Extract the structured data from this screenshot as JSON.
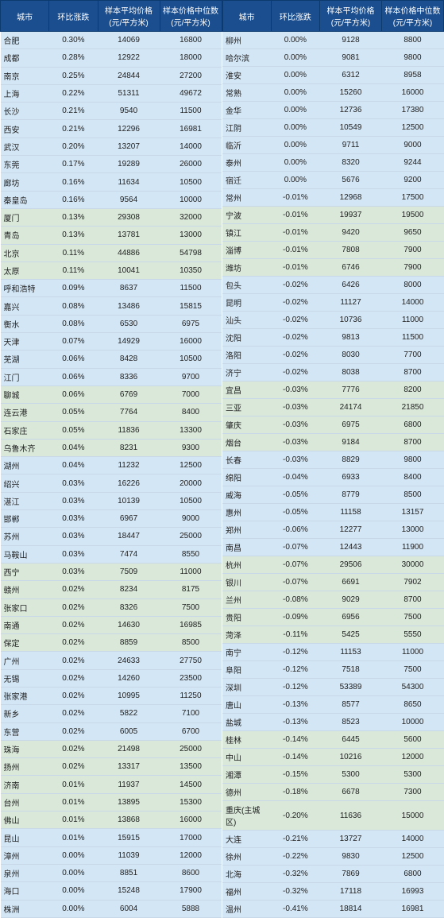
{
  "headers": {
    "city": "城市",
    "change": "环比涨跌",
    "avg": "样本平均价格(元/平方米)",
    "median": "样本价格中位数(元/平方米)"
  },
  "left": [
    {
      "c": "合肥",
      "p": "0.30%",
      "a": "14069",
      "m": "16800",
      "cls": "blue"
    },
    {
      "c": "成都",
      "p": "0.28%",
      "a": "12922",
      "m": "18000",
      "cls": "blue"
    },
    {
      "c": "南京",
      "p": "0.25%",
      "a": "24844",
      "m": "27200",
      "cls": "blue"
    },
    {
      "c": "上海",
      "p": "0.22%",
      "a": "51311",
      "m": "49672",
      "cls": "blue"
    },
    {
      "c": "长沙",
      "p": "0.21%",
      "a": "9540",
      "m": "11500",
      "cls": "blue"
    },
    {
      "c": "西安",
      "p": "0.21%",
      "a": "12296",
      "m": "16981",
      "cls": "blue"
    },
    {
      "c": "武汉",
      "p": "0.20%",
      "a": "13207",
      "m": "14000",
      "cls": "blue"
    },
    {
      "c": "东莞",
      "p": "0.17%",
      "a": "19289",
      "m": "26000",
      "cls": "blue"
    },
    {
      "c": "廊坊",
      "p": "0.16%",
      "a": "11634",
      "m": "10500",
      "cls": "blue"
    },
    {
      "c": "秦皇岛",
      "p": "0.16%",
      "a": "9564",
      "m": "10000",
      "cls": "blue"
    },
    {
      "c": "厦门",
      "p": "0.13%",
      "a": "29308",
      "m": "32000",
      "cls": "green"
    },
    {
      "c": "青岛",
      "p": "0.13%",
      "a": "13781",
      "m": "13000",
      "cls": "green"
    },
    {
      "c": "北京",
      "p": "0.11%",
      "a": "44886",
      "m": "54798",
      "cls": "green"
    },
    {
      "c": "太原",
      "p": "0.11%",
      "a": "10041",
      "m": "10350",
      "cls": "green"
    },
    {
      "c": "呼和浩特",
      "p": "0.09%",
      "a": "8637",
      "m": "11500",
      "cls": "blue"
    },
    {
      "c": "嘉兴",
      "p": "0.08%",
      "a": "13486",
      "m": "15815",
      "cls": "blue"
    },
    {
      "c": "衡水",
      "p": "0.08%",
      "a": "6530",
      "m": "6975",
      "cls": "blue"
    },
    {
      "c": "天津",
      "p": "0.07%",
      "a": "14929",
      "m": "16000",
      "cls": "blue"
    },
    {
      "c": "芜湖",
      "p": "0.06%",
      "a": "8428",
      "m": "10500",
      "cls": "blue"
    },
    {
      "c": "江门",
      "p": "0.06%",
      "a": "8336",
      "m": "9700",
      "cls": "blue"
    },
    {
      "c": "聊城",
      "p": "0.06%",
      "a": "6769",
      "m": "7000",
      "cls": "green"
    },
    {
      "c": "连云港",
      "p": "0.05%",
      "a": "7764",
      "m": "8400",
      "cls": "green"
    },
    {
      "c": "石家庄",
      "p": "0.05%",
      "a": "11836",
      "m": "13300",
      "cls": "green"
    },
    {
      "c": "乌鲁木齐",
      "p": "0.04%",
      "a": "8231",
      "m": "9300",
      "cls": "green"
    },
    {
      "c": "湖州",
      "p": "0.04%",
      "a": "11232",
      "m": "12500",
      "cls": "blue"
    },
    {
      "c": "绍兴",
      "p": "0.03%",
      "a": "16226",
      "m": "20000",
      "cls": "blue"
    },
    {
      "c": "湛江",
      "p": "0.03%",
      "a": "10139",
      "m": "10500",
      "cls": "blue"
    },
    {
      "c": "邯郸",
      "p": "0.03%",
      "a": "6967",
      "m": "9000",
      "cls": "blue"
    },
    {
      "c": "苏州",
      "p": "0.03%",
      "a": "18447",
      "m": "25000",
      "cls": "blue"
    },
    {
      "c": "马鞍山",
      "p": "0.03%",
      "a": "7474",
      "m": "8550",
      "cls": "blue"
    },
    {
      "c": "西宁",
      "p": "0.03%",
      "a": "7509",
      "m": "11000",
      "cls": "green"
    },
    {
      "c": "赣州",
      "p": "0.02%",
      "a": "8234",
      "m": "8175",
      "cls": "green"
    },
    {
      "c": "张家口",
      "p": "0.02%",
      "a": "8326",
      "m": "7500",
      "cls": "green"
    },
    {
      "c": "南通",
      "p": "0.02%",
      "a": "14630",
      "m": "16985",
      "cls": "green"
    },
    {
      "c": "保定",
      "p": "0.02%",
      "a": "8859",
      "m": "8500",
      "cls": "green"
    },
    {
      "c": "广州",
      "p": "0.02%",
      "a": "24633",
      "m": "27750",
      "cls": "blue"
    },
    {
      "c": "无锡",
      "p": "0.02%",
      "a": "14260",
      "m": "23500",
      "cls": "blue"
    },
    {
      "c": "张家港",
      "p": "0.02%",
      "a": "10995",
      "m": "11250",
      "cls": "blue"
    },
    {
      "c": "新乡",
      "p": "0.02%",
      "a": "5822",
      "m": "7100",
      "cls": "blue"
    },
    {
      "c": "东营",
      "p": "0.02%",
      "a": "6005",
      "m": "6700",
      "cls": "blue"
    },
    {
      "c": "珠海",
      "p": "0.02%",
      "a": "21498",
      "m": "25000",
      "cls": "green"
    },
    {
      "c": "扬州",
      "p": "0.02%",
      "a": "13317",
      "m": "13500",
      "cls": "green"
    },
    {
      "c": "济南",
      "p": "0.01%",
      "a": "11937",
      "m": "14500",
      "cls": "green"
    },
    {
      "c": "台州",
      "p": "0.01%",
      "a": "13895",
      "m": "15300",
      "cls": "green"
    },
    {
      "c": "佛山",
      "p": "0.01%",
      "a": "13868",
      "m": "16000",
      "cls": "green"
    },
    {
      "c": "昆山",
      "p": "0.01%",
      "a": "15915",
      "m": "17000",
      "cls": "blue"
    },
    {
      "c": "漳州",
      "p": "0.00%",
      "a": "11039",
      "m": "12000",
      "cls": "blue"
    },
    {
      "c": "泉州",
      "p": "0.00%",
      "a": "8851",
      "m": "8600",
      "cls": "blue"
    },
    {
      "c": "海口",
      "p": "0.00%",
      "a": "15248",
      "m": "17900",
      "cls": "blue"
    },
    {
      "c": "株洲",
      "p": "0.00%",
      "a": "6004",
      "m": "5888",
      "cls": "blue"
    }
  ],
  "right": [
    {
      "c": "柳州",
      "p": "0.00%",
      "a": "9128",
      "m": "8800",
      "cls": "blue"
    },
    {
      "c": "哈尔滨",
      "p": "0.00%",
      "a": "9081",
      "m": "9800",
      "cls": "blue"
    },
    {
      "c": "淮安",
      "p": "0.00%",
      "a": "6312",
      "m": "8958",
      "cls": "blue"
    },
    {
      "c": "常熟",
      "p": "0.00%",
      "a": "15260",
      "m": "16000",
      "cls": "blue"
    },
    {
      "c": "金华",
      "p": "0.00%",
      "a": "12736",
      "m": "17380",
      "cls": "blue"
    },
    {
      "c": "江阴",
      "p": "0.00%",
      "a": "10549",
      "m": "12500",
      "cls": "blue"
    },
    {
      "c": "临沂",
      "p": "0.00%",
      "a": "9711",
      "m": "9000",
      "cls": "blue"
    },
    {
      "c": "泰州",
      "p": "0.00%",
      "a": "8320",
      "m": "9244",
      "cls": "blue"
    },
    {
      "c": "宿迁",
      "p": "0.00%",
      "a": "5676",
      "m": "9200",
      "cls": "blue"
    },
    {
      "c": "常州",
      "p": "-0.01%",
      "a": "12968",
      "m": "17500",
      "cls": "blue"
    },
    {
      "c": "宁波",
      "p": "-0.01%",
      "a": "19937",
      "m": "19500",
      "cls": "green"
    },
    {
      "c": "镇江",
      "p": "-0.01%",
      "a": "9420",
      "m": "9650",
      "cls": "green"
    },
    {
      "c": "淄博",
      "p": "-0.01%",
      "a": "7808",
      "m": "7900",
      "cls": "green"
    },
    {
      "c": "潍坊",
      "p": "-0.01%",
      "a": "6746",
      "m": "7900",
      "cls": "green"
    },
    {
      "c": "包头",
      "p": "-0.02%",
      "a": "6426",
      "m": "8000",
      "cls": "blue"
    },
    {
      "c": "昆明",
      "p": "-0.02%",
      "a": "11127",
      "m": "14000",
      "cls": "blue"
    },
    {
      "c": "汕头",
      "p": "-0.02%",
      "a": "10736",
      "m": "11000",
      "cls": "blue"
    },
    {
      "c": "沈阳",
      "p": "-0.02%",
      "a": "9813",
      "m": "11500",
      "cls": "blue"
    },
    {
      "c": "洛阳",
      "p": "-0.02%",
      "a": "8030",
      "m": "7700",
      "cls": "blue"
    },
    {
      "c": "济宁",
      "p": "-0.02%",
      "a": "8038",
      "m": "8700",
      "cls": "blue"
    },
    {
      "c": "宜昌",
      "p": "-0.03%",
      "a": "7776",
      "m": "8200",
      "cls": "green"
    },
    {
      "c": "三亚",
      "p": "-0.03%",
      "a": "24174",
      "m": "21850",
      "cls": "green"
    },
    {
      "c": "肇庆",
      "p": "-0.03%",
      "a": "6975",
      "m": "6800",
      "cls": "green"
    },
    {
      "c": "烟台",
      "p": "-0.03%",
      "a": "9184",
      "m": "8700",
      "cls": "green"
    },
    {
      "c": "长春",
      "p": "-0.03%",
      "a": "8829",
      "m": "9800",
      "cls": "blue"
    },
    {
      "c": "绵阳",
      "p": "-0.04%",
      "a": "6933",
      "m": "8400",
      "cls": "blue"
    },
    {
      "c": "威海",
      "p": "-0.05%",
      "a": "8779",
      "m": "8500",
      "cls": "blue"
    },
    {
      "c": "惠州",
      "p": "-0.05%",
      "a": "11158",
      "m": "13157",
      "cls": "blue"
    },
    {
      "c": "郑州",
      "p": "-0.06%",
      "a": "12277",
      "m": "13000",
      "cls": "blue"
    },
    {
      "c": "南昌",
      "p": "-0.07%",
      "a": "12443",
      "m": "11900",
      "cls": "blue"
    },
    {
      "c": "杭州",
      "p": "-0.07%",
      "a": "29506",
      "m": "30000",
      "cls": "green"
    },
    {
      "c": "银川",
      "p": "-0.07%",
      "a": "6691",
      "m": "7902",
      "cls": "green"
    },
    {
      "c": "兰州",
      "p": "-0.08%",
      "a": "9029",
      "m": "8700",
      "cls": "green"
    },
    {
      "c": "贵阳",
      "p": "-0.09%",
      "a": "6956",
      "m": "7500",
      "cls": "green"
    },
    {
      "c": "菏泽",
      "p": "-0.11%",
      "a": "5425",
      "m": "5550",
      "cls": "green"
    },
    {
      "c": "南宁",
      "p": "-0.12%",
      "a": "11153",
      "m": "11000",
      "cls": "blue"
    },
    {
      "c": "阜阳",
      "p": "-0.12%",
      "a": "7518",
      "m": "7500",
      "cls": "blue"
    },
    {
      "c": "深圳",
      "p": "-0.12%",
      "a": "53389",
      "m": "54300",
      "cls": "blue"
    },
    {
      "c": "唐山",
      "p": "-0.13%",
      "a": "8577",
      "m": "8650",
      "cls": "blue"
    },
    {
      "c": "盐城",
      "p": "-0.13%",
      "a": "8523",
      "m": "10000",
      "cls": "blue"
    },
    {
      "c": "桂林",
      "p": "-0.14%",
      "a": "6445",
      "m": "5600",
      "cls": "green"
    },
    {
      "c": "中山",
      "p": "-0.14%",
      "a": "10216",
      "m": "12000",
      "cls": "green"
    },
    {
      "c": "湘潭",
      "p": "-0.15%",
      "a": "5300",
      "m": "5300",
      "cls": "green"
    },
    {
      "c": "德州",
      "p": "-0.18%",
      "a": "6678",
      "m": "7300",
      "cls": "green"
    },
    {
      "c": "重庆(主城区)",
      "p": "-0.20%",
      "a": "11636",
      "m": "15000",
      "cls": "green"
    },
    {
      "c": "大连",
      "p": "-0.21%",
      "a": "13727",
      "m": "14000",
      "cls": "blue"
    },
    {
      "c": "徐州",
      "p": "-0.22%",
      "a": "9830",
      "m": "12500",
      "cls": "blue"
    },
    {
      "c": "北海",
      "p": "-0.32%",
      "a": "7869",
      "m": "6800",
      "cls": "blue"
    },
    {
      "c": "福州",
      "p": "-0.32%",
      "a": "17118",
      "m": "16993",
      "cls": "blue"
    },
    {
      "c": "温州",
      "p": "-0.41%",
      "a": "18814",
      "m": "16981",
      "cls": "blue"
    }
  ]
}
